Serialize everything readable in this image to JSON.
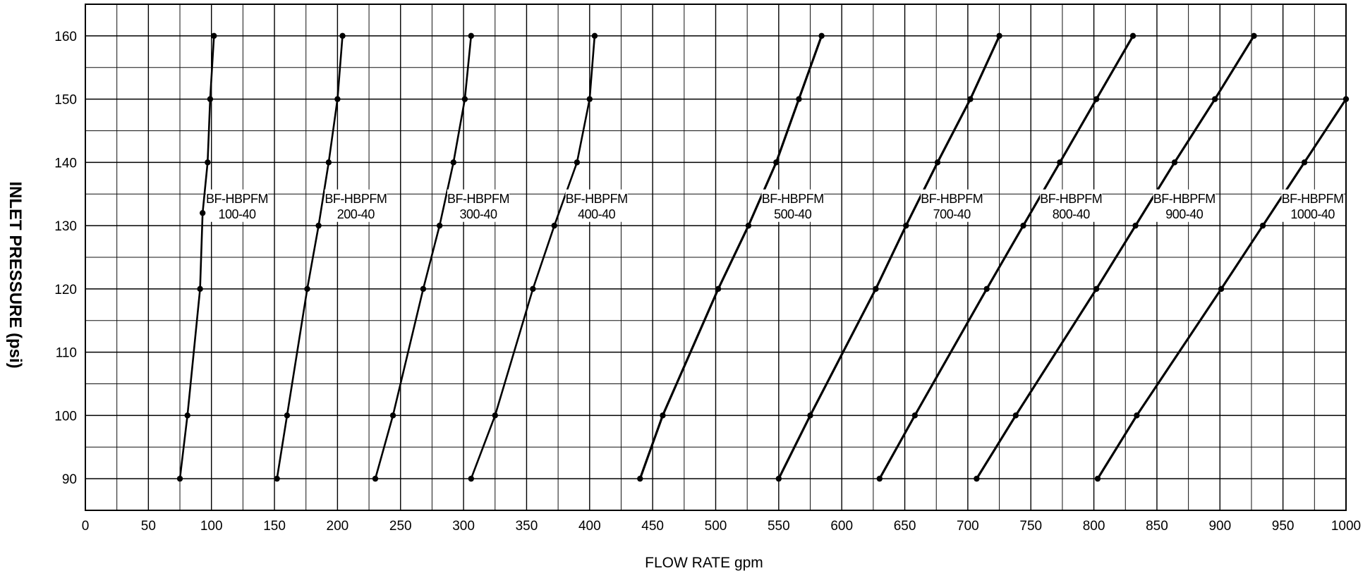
{
  "chart_data": {
    "type": "line",
    "xlabel": "FLOW RATE gpm",
    "ylabel": "INLET PRESSURE (psi)",
    "xlim": [
      0,
      1000
    ],
    "ylim": [
      85,
      165
    ],
    "x_ticks": [
      0,
      50,
      100,
      150,
      200,
      250,
      300,
      350,
      400,
      450,
      500,
      550,
      600,
      650,
      700,
      750,
      800,
      850,
      900,
      950,
      1000
    ],
    "y_ticks": [
      90,
      100,
      110,
      120,
      130,
      140,
      150,
      160
    ],
    "grid": true,
    "legend": "none",
    "line_color": "#000000",
    "series": [
      {
        "name_lines": [
          "BF-HBPFM",
          "100-40"
        ],
        "x": [
          75,
          81,
          91,
          93,
          97,
          99,
          102
        ],
        "y": [
          90,
          100,
          120,
          132,
          140,
          150,
          160
        ]
      },
      {
        "name_lines": [
          "BF-HBPFM",
          "200-40"
        ],
        "x": [
          152,
          160,
          176,
          185,
          193,
          200,
          204
        ],
        "y": [
          90,
          100,
          120,
          130,
          140,
          150,
          160
        ]
      },
      {
        "name_lines": [
          "BF-HBPFM",
          "300-40"
        ],
        "x": [
          230,
          244,
          268,
          281,
          292,
          301,
          306
        ],
        "y": [
          90,
          100,
          120,
          130,
          140,
          150,
          160
        ]
      },
      {
        "name_lines": [
          "BF-HBPFM",
          "400-40"
        ],
        "x": [
          306,
          325,
          355,
          372,
          390,
          400,
          404
        ],
        "y": [
          90,
          100,
          120,
          130,
          140,
          150,
          160
        ]
      },
      {
        "name_lines": [
          "BF-HBPFM",
          "500-40"
        ],
        "x": [
          440,
          458,
          502,
          526,
          548,
          566,
          584
        ],
        "y": [
          90,
          100,
          120,
          130,
          140,
          150,
          160
        ]
      },
      {
        "name_lines": [
          "BF-HBPFM",
          "700-40"
        ],
        "x": [
          550,
          575,
          627,
          651,
          676,
          702,
          725
        ],
        "y": [
          90,
          100,
          120,
          130,
          140,
          150,
          160
        ]
      },
      {
        "name_lines": [
          "BF-HBPFM",
          "800-40"
        ],
        "x": [
          630,
          658,
          715,
          744,
          773,
          802,
          831
        ],
        "y": [
          90,
          100,
          120,
          130,
          140,
          150,
          160
        ]
      },
      {
        "name_lines": [
          "BF-HBPFM",
          "900-40"
        ],
        "x": [
          707,
          738,
          802,
          833,
          864,
          896,
          927
        ],
        "y": [
          90,
          100,
          120,
          130,
          140,
          150,
          160
        ]
      },
      {
        "name_lines": [
          "BF-HBPFM",
          "1000-40"
        ],
        "x": [
          803,
          834,
          901,
          934,
          967,
          1000
        ],
        "y": [
          90,
          100,
          120,
          130,
          140,
          150
        ]
      }
    ]
  }
}
